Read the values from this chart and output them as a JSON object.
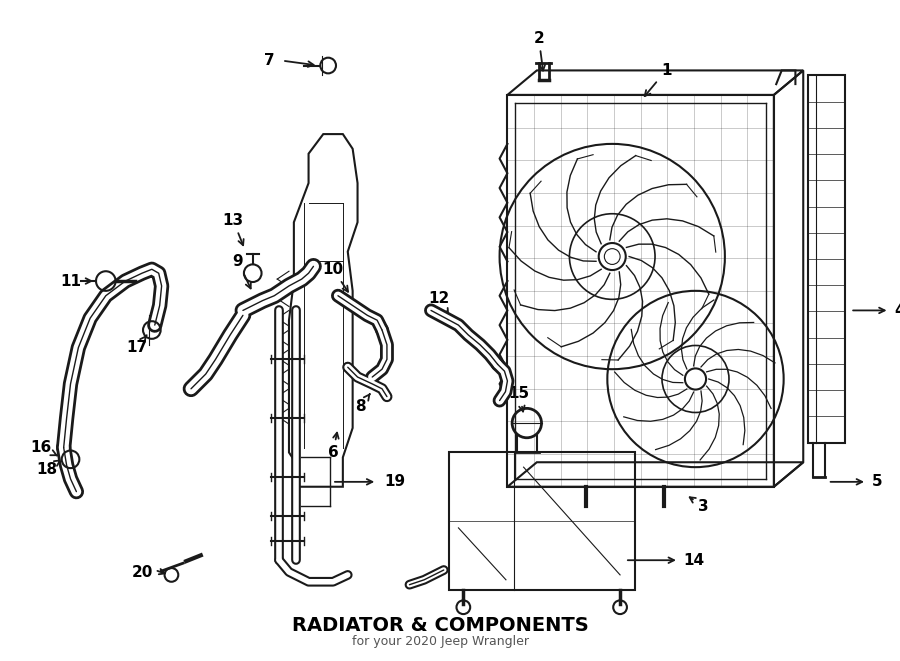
{
  "title": "RADIATOR & COMPONENTS",
  "subtitle": "for your 2020 Jeep Wrangler",
  "bg_color": "#ffffff",
  "line_color": "#1a1a1a",
  "text_color": "#000000",
  "fig_width": 9.0,
  "fig_height": 6.61,
  "dpi": 100
}
